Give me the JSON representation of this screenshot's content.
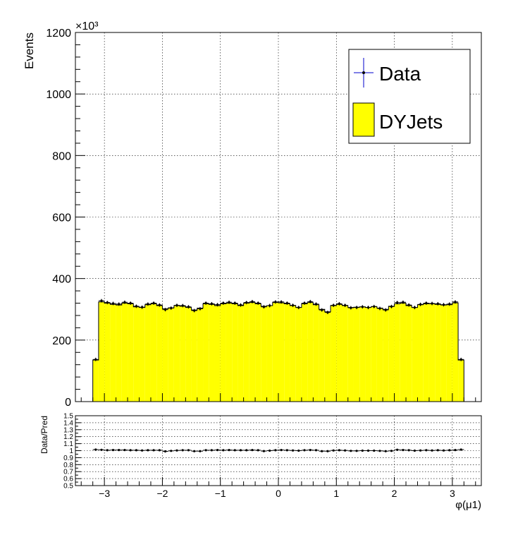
{
  "chart_data": [
    {
      "type": "bar",
      "ylabel": "Events",
      "y_multiplier": "×10³",
      "ylim": [
        0,
        1200000
      ],
      "yticks": [
        0,
        200,
        400,
        600,
        800,
        1000,
        1200
      ],
      "xlim": [
        -3.5,
        3.5
      ],
      "grid": true,
      "legend_position": "top-right",
      "legend": [
        {
          "label": "Data",
          "kind": "points"
        },
        {
          "label": "DYJets",
          "kind": "fill",
          "color": "#ffff00"
        }
      ],
      "bin_edges": [
        -3.2,
        -3.1,
        -3.0,
        -2.9,
        -2.8,
        -2.7,
        -2.6,
        -2.5,
        -2.4,
        -2.3,
        -2.2,
        -2.1,
        -2.0,
        -1.9,
        -1.8,
        -1.7,
        -1.6,
        -1.5,
        -1.4,
        -1.3,
        -1.2,
        -1.1,
        -1.0,
        -0.9,
        -0.8,
        -0.7,
        -0.6,
        -0.5,
        -0.4,
        -0.3,
        -0.2,
        -0.1,
        0.0,
        0.1,
        0.2,
        0.3,
        0.4,
        0.5,
        0.6,
        0.7,
        0.8,
        0.9,
        1.0,
        1.1,
        1.2,
        1.3,
        1.4,
        1.5,
        1.6,
        1.7,
        1.8,
        1.9,
        2.0,
        2.1,
        2.2,
        2.3,
        2.4,
        2.5,
        2.6,
        2.7,
        2.8,
        2.9,
        3.0,
        3.1,
        3.2
      ],
      "series": [
        {
          "name": "DYJets",
          "color": "#ffff00",
          "values": [
            135000,
            324000,
            320000,
            316000,
            314000,
            320000,
            318000,
            308000,
            306000,
            315000,
            318000,
            312000,
            302000,
            305000,
            312000,
            310000,
            306000,
            298000,
            304000,
            318000,
            316000,
            312000,
            318000,
            320000,
            318000,
            312000,
            320000,
            322000,
            318000,
            310000,
            312000,
            322000,
            321000,
            318000,
            312000,
            306000,
            318000,
            322000,
            315000,
            300000,
            292000,
            312000,
            316000,
            312000,
            306000,
            307000,
            308000,
            306000,
            309000,
            304000,
            300000,
            310000,
            318000,
            320000,
            312000,
            306000,
            315000,
            318000,
            318000,
            316000,
            314000,
            315000,
            321000,
            135000
          ]
        },
        {
          "name": "Data",
          "values": [
            137000,
            328000,
            322000,
            319000,
            317000,
            323000,
            320000,
            310000,
            307000,
            317000,
            320000,
            314000,
            299000,
            304000,
            313000,
            312000,
            308000,
            296000,
            302000,
            320000,
            318000,
            315000,
            320000,
            323000,
            320000,
            314000,
            322000,
            325000,
            320000,
            308000,
            312000,
            324000,
            324000,
            320000,
            313000,
            306000,
            320000,
            325000,
            317000,
            298000,
            290000,
            313000,
            318000,
            313000,
            305000,
            306000,
            308000,
            306000,
            309000,
            303000,
            298000,
            309000,
            322000,
            323000,
            314000,
            306000,
            316000,
            320000,
            319000,
            318000,
            315000,
            317000,
            324000,
            137000
          ]
        }
      ]
    },
    {
      "type": "scatter",
      "ylabel": "Data/Pred",
      "xlabel": "φ(μ1)",
      "ylim": [
        0.5,
        1.5
      ],
      "yticks": [
        "0.5",
        "0.6",
        "0.7",
        "0.8",
        "0.9",
        "1",
        "1.1",
        "1.2",
        "1.3",
        "1.4",
        "1.5"
      ],
      "xlim": [
        -3.5,
        3.5
      ],
      "xticks": [
        "−3",
        "−2",
        "−1",
        "0",
        "1",
        "2",
        "3"
      ],
      "grid": true,
      "ratio": [
        1.015,
        1.012,
        1.006,
        1.009,
        1.009,
        1.009,
        1.006,
        1.006,
        1.003,
        1.006,
        1.006,
        1.006,
        0.99,
        0.997,
        1.003,
        1.006,
        1.006,
        0.993,
        0.993,
        1.006,
        1.006,
        1.009,
        1.006,
        1.009,
        1.006,
        1.006,
        1.006,
        1.009,
        1.006,
        0.994,
        1.0,
        1.006,
        1.009,
        1.006,
        1.003,
        1.0,
        1.006,
        1.009,
        1.006,
        0.993,
        0.993,
        1.003,
        1.006,
        1.003,
        0.997,
        0.997,
        1.0,
        1.0,
        1.0,
        0.997,
        0.993,
        0.997,
        1.013,
        1.009,
        1.006,
        1.0,
        1.003,
        1.006,
        1.003,
        1.006,
        1.003,
        1.006,
        1.009,
        1.015
      ]
    }
  ]
}
